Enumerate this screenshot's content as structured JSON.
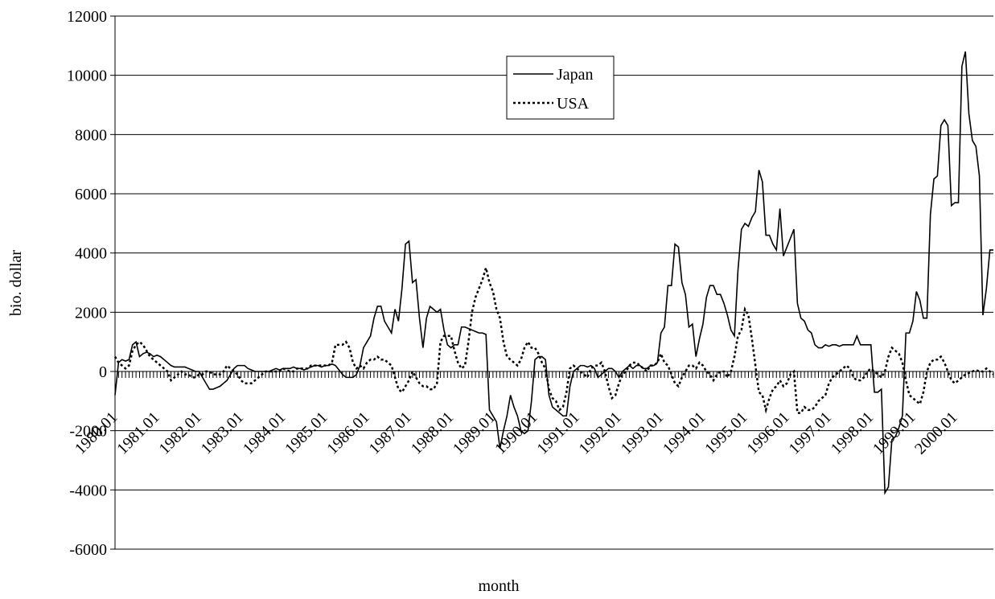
{
  "chart_data": {
    "type": "line",
    "x_label": "month",
    "y_label": "bio. dollar",
    "ylim": [
      -6000,
      12000
    ],
    "yticks": [
      -6000,
      -4000,
      -2000,
      0,
      2000,
      4000,
      6000,
      8000,
      10000,
      12000
    ],
    "grid": true,
    "legend": "top",
    "categories": [
      "1980.01",
      null,
      null,
      null,
      null,
      null,
      null,
      null,
      null,
      null,
      null,
      null,
      "1981.01",
      null,
      null,
      null,
      null,
      null,
      null,
      null,
      null,
      null,
      null,
      null,
      "1982.01",
      null,
      null,
      null,
      null,
      null,
      null,
      null,
      null,
      null,
      null,
      null,
      "1983.01",
      null,
      null,
      null,
      null,
      null,
      null,
      null,
      null,
      null,
      null,
      null,
      "1984.01",
      null,
      null,
      null,
      null,
      null,
      null,
      null,
      null,
      null,
      null,
      null,
      "1985.01",
      null,
      null,
      null,
      null,
      null,
      null,
      null,
      null,
      null,
      null,
      null,
      "1986.01",
      null,
      null,
      null,
      null,
      null,
      null,
      null,
      null,
      null,
      null,
      null,
      "1987.01",
      null,
      null,
      null,
      null,
      null,
      null,
      null,
      null,
      null,
      null,
      null,
      "1988.01",
      null,
      null,
      null,
      null,
      null,
      null,
      null,
      null,
      null,
      null,
      null,
      "1989.01",
      null,
      null,
      null,
      null,
      null,
      null,
      null,
      null,
      null,
      null,
      null,
      "1990.01",
      null,
      null,
      null,
      null,
      null,
      null,
      null,
      null,
      null,
      null,
      null,
      "1991.01",
      null,
      null,
      null,
      null,
      null,
      null,
      null,
      null,
      null,
      null,
      null,
      "1992.01",
      null,
      null,
      null,
      null,
      null,
      null,
      null,
      null,
      null,
      null,
      null,
      "1993.01",
      null,
      null,
      null,
      null,
      null,
      null,
      null,
      null,
      null,
      null,
      null,
      "1994.01",
      null,
      null,
      null,
      null,
      null,
      null,
      null,
      null,
      null,
      null,
      null,
      "1995.01",
      null,
      null,
      null,
      null,
      null,
      null,
      null,
      null,
      null,
      null,
      null,
      "1996.01",
      null,
      null,
      null,
      null,
      null,
      null,
      null,
      null,
      null,
      null,
      null,
      "1997.01",
      null,
      null,
      null,
      null,
      null,
      null,
      null,
      null,
      null,
      null,
      null,
      "1998.01",
      null,
      null,
      null,
      null,
      null,
      null,
      null,
      null,
      null,
      null,
      null,
      "1999.01",
      null,
      null,
      null,
      null,
      null,
      null,
      null,
      null,
      null,
      null,
      null,
      "2000.01",
      null,
      null,
      null,
      null,
      null,
      null,
      null,
      null,
      null,
      null,
      null
    ],
    "series": [
      {
        "name": "Japan",
        "color": "#000000",
        "dash": "solid",
        "values": [
          -800,
          300,
          400,
          350,
          400,
          900,
          1000,
          500,
          600,
          650,
          600,
          500,
          550,
          500,
          400,
          300,
          200,
          150,
          150,
          150,
          150,
          100,
          50,
          0,
          0,
          -200,
          -400,
          -600,
          -600,
          -550,
          -500,
          -400,
          -300,
          -100,
          100,
          200,
          200,
          200,
          100,
          50,
          0,
          0,
          0,
          0,
          0,
          50,
          100,
          50,
          100,
          100,
          100,
          150,
          100,
          100,
          50,
          100,
          150,
          200,
          200,
          150,
          200,
          200,
          250,
          200,
          50,
          -100,
          -200,
          -200,
          -200,
          -100,
          200,
          800,
          1000,
          1200,
          1800,
          2200,
          2200,
          1700,
          1500,
          1300,
          2100,
          1700,
          2800,
          4300,
          4400,
          3000,
          3100,
          1800,
          800,
          1800,
          2200,
          2100,
          2000,
          2100,
          1400,
          900,
          800,
          900,
          900,
          1500,
          1500,
          1450,
          1400,
          1350,
          1300,
          1300,
          1250,
          -1300,
          -1500,
          -1700,
          -2600,
          -2000,
          -1500,
          -800,
          -1200,
          -1500,
          -2000,
          -2100,
          -2000,
          -1000,
          400,
          500,
          500,
          400,
          -800,
          -1200,
          -1300,
          -1400,
          -1500,
          -1500,
          -500,
          0,
          100,
          200,
          200,
          150,
          200,
          100,
          -200,
          -100,
          0,
          100,
          100,
          0,
          -200,
          0,
          100,
          200,
          100,
          200,
          200,
          100,
          100,
          200,
          200,
          300,
          1300,
          1500,
          2900,
          2900,
          4300,
          4200,
          3000,
          2600,
          1500,
          1600,
          500,
          1100,
          1600,
          2500,
          2900,
          2900,
          2600,
          2600,
          2300,
          1900,
          1400,
          1200,
          3400,
          4800,
          5000,
          4900,
          5200,
          5400,
          6800,
          6400,
          4600,
          4600,
          4300,
          4100,
          5500,
          3900,
          4200,
          4500,
          4800,
          2300,
          1800,
          1700,
          1400,
          1300,
          900,
          800,
          800,
          900,
          850,
          900,
          900,
          850,
          900,
          900,
          900,
          900,
          1200,
          900,
          900,
          900,
          900,
          -700,
          -700,
          -600,
          -4100,
          -3900,
          -2300,
          -2200,
          -1900,
          -1500,
          1300,
          1300,
          1700,
          2700,
          2400,
          1800,
          1800,
          5300,
          6500,
          6600,
          8300,
          8500,
          8300,
          5600,
          5700,
          5700,
          10300,
          10800,
          8700,
          7800,
          7600,
          6600,
          1900,
          2800,
          4100,
          4100
        ]
      },
      {
        "name": "USA",
        "color": "#000000",
        "dash": "dotted",
        "values": [
          500,
          300,
          200,
          100,
          200,
          700,
          900,
          1000,
          900,
          700,
          500,
          400,
          300,
          200,
          100,
          0,
          -300,
          -200,
          -100,
          0,
          -100,
          -100,
          -200,
          -200,
          -100,
          -100,
          0,
          0,
          -100,
          -100,
          -100,
          0,
          200,
          100,
          0,
          -100,
          -300,
          -400,
          -400,
          -400,
          -300,
          -200,
          -100,
          0,
          0,
          0,
          0,
          0,
          100,
          50,
          0,
          0,
          100,
          100,
          100,
          100,
          200,
          200,
          200,
          200,
          200,
          200,
          300,
          900,
          900,
          900,
          1000,
          800,
          300,
          100,
          200,
          100,
          300,
          400,
          400,
          500,
          400,
          400,
          300,
          200,
          -200,
          -600,
          -700,
          -500,
          -300,
          0,
          -200,
          -400,
          -500,
          -500,
          -600,
          -600,
          -400,
          1000,
          1200,
          1200,
          1200,
          700,
          300,
          100,
          200,
          1000,
          2000,
          2500,
          2800,
          3100,
          3500,
          3000,
          2700,
          2100,
          1800,
          1000,
          500,
          400,
          300,
          200,
          400,
          800,
          1000,
          800,
          800,
          600,
          300,
          100,
          -600,
          -900,
          -1000,
          -1300,
          -1200,
          -700,
          100,
          200,
          100,
          0,
          -100,
          -200,
          100,
          200,
          200,
          300,
          0,
          -500,
          -900,
          -800,
          -400,
          -100,
          0,
          200,
          300,
          300,
          200,
          100,
          0,
          200,
          200,
          300,
          600,
          300,
          200,
          -100,
          -400,
          -500,
          -200,
          0,
          200,
          200,
          100,
          300,
          200,
          0,
          -100,
          -300,
          -100,
          0,
          0,
          -200,
          0,
          500,
          1200,
          1400,
          2100,
          1900,
          1100,
          200,
          -700,
          -800,
          -1300,
          -900,
          -600,
          -500,
          -300,
          -500,
          -400,
          -100,
          0,
          -1400,
          -1400,
          -1200,
          -1300,
          -1300,
          -1200,
          -1000,
          -900,
          -800,
          -400,
          -200,
          -100,
          0,
          100,
          200,
          100,
          -200,
          -300,
          -300,
          -200,
          0,
          100,
          0,
          -100,
          -200,
          0,
          500,
          800,
          700,
          600,
          300,
          -300,
          -800,
          -900,
          -1000,
          -1100,
          -700,
          0,
          300,
          400,
          400,
          500,
          300,
          0,
          -300,
          -400,
          -300,
          -200,
          -100,
          -50,
          0,
          50,
          0,
          0,
          100,
          0,
          -100
        ]
      }
    ]
  }
}
